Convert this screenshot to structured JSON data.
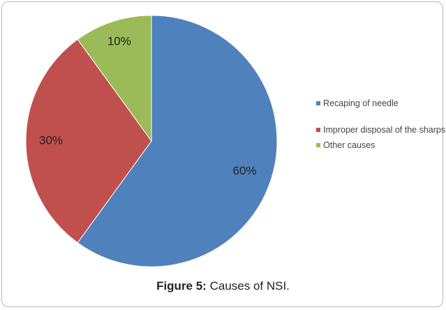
{
  "chart_data": {
    "type": "pie",
    "categories": [
      "Recaping of needle",
      "Improper disposal of the sharps",
      "Other causes"
    ],
    "values": [
      60,
      30,
      10
    ],
    "data_labels": [
      "60%",
      "30%",
      "10%"
    ],
    "colors": [
      "#4f81bd",
      "#c0504d",
      "#9bbb59"
    ],
    "start_angle_deg": 0,
    "direction": "clockwise",
    "legend_position": "right"
  },
  "caption": {
    "label": "Figure 5:",
    "text": " Causes of NSI."
  }
}
